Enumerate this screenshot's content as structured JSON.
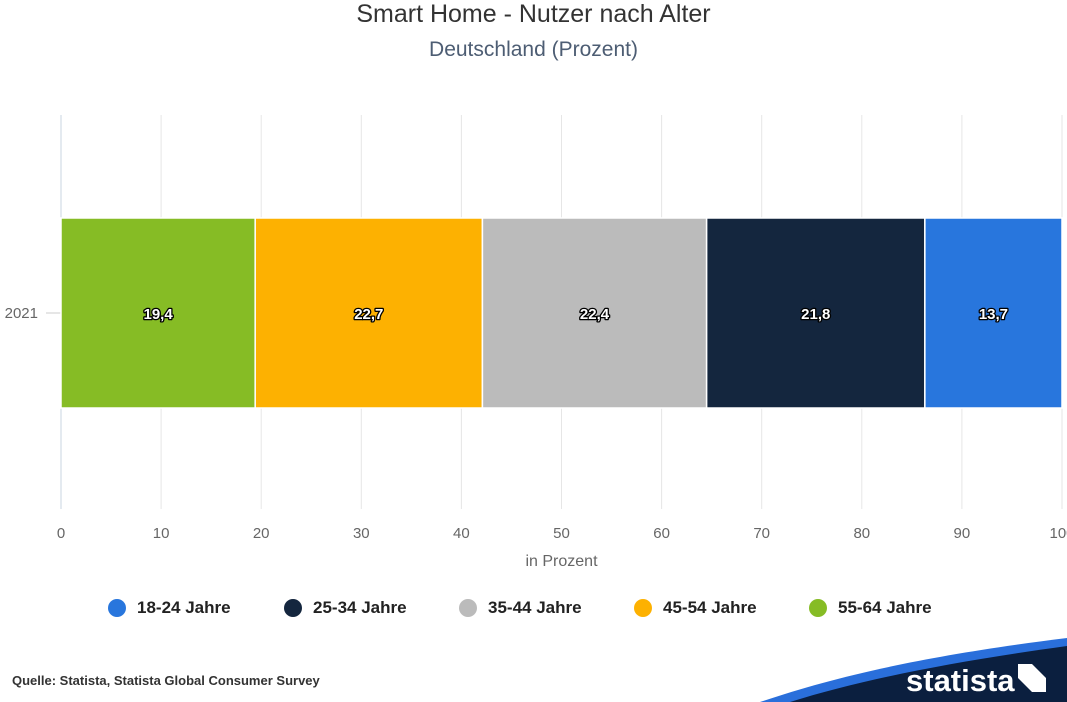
{
  "chart_data": {
    "type": "bar",
    "orientation": "horizontal",
    "stacked": true,
    "title": "Smart Home - Nutzer nach Alter",
    "subtitle": "Deutschland (Prozent)",
    "xlabel": "in Prozent",
    "ylabel": "",
    "categories": [
      "2021"
    ],
    "xlim": [
      0,
      100
    ],
    "x_ticks": [
      0,
      10,
      20,
      30,
      40,
      50,
      60,
      70,
      80,
      90,
      100
    ],
    "grid": true,
    "legend_position": "bottom",
    "series": [
      {
        "name": "55-64 Jahre",
        "values": [
          19.4
        ],
        "label": "19,4",
        "color": "#86bc25"
      },
      {
        "name": "45-54 Jahre",
        "values": [
          22.7
        ],
        "label": "22,7",
        "color": "#fdb101"
      },
      {
        "name": "35-44 Jahre",
        "values": [
          22.4
        ],
        "label": "22,4",
        "color": "#bbbbbb"
      },
      {
        "name": "25-34 Jahre",
        "values": [
          21.8
        ],
        "label": "21,8",
        "color": "#14263e"
      },
      {
        "name": "18-24 Jahre",
        "values": [
          13.7
        ],
        "label": "13,7",
        "color": "#2876dd"
      }
    ],
    "legend_order": [
      "18-24 Jahre",
      "25-34 Jahre",
      "35-44 Jahre",
      "45-54 Jahre",
      "55-64 Jahre"
    ]
  },
  "footer": {
    "source": "Quelle: Statista, Statista Global Consumer Survey",
    "brand": "statista"
  },
  "colors": {
    "grid": "#e6e6e6",
    "axis_text": "#666666",
    "brand_blue": "#0b1f3f",
    "brand_accent": "#2a6fdb"
  }
}
